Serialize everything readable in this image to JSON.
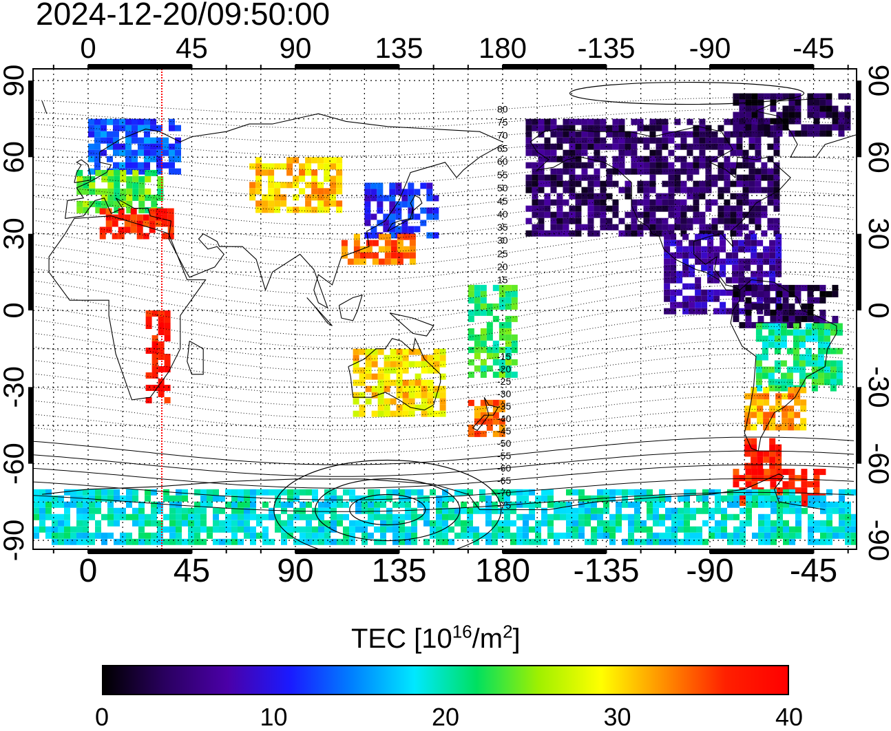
{
  "title": "2024-12-20/09:50:00",
  "map": {
    "x_ticks": [
      "0",
      "45",
      "90",
      "135",
      "180",
      "-135",
      "-90",
      "-45"
    ],
    "y_ticks": [
      "90",
      "60",
      "30",
      "0",
      "-30",
      "-60",
      "-90"
    ],
    "magnetic_latitude_labels": [
      "80",
      "75",
      "70",
      "65",
      "60",
      "55",
      "50",
      "45",
      "40",
      "35",
      "30",
      "25",
      "20",
      "15",
      "-15",
      "-20",
      "-25",
      "-30",
      "-35",
      "-40",
      "-45",
      "-50",
      "-55",
      "-60",
      "-65",
      "-70",
      "-75"
    ],
    "terminator_longitude": 32
  },
  "colorbar": {
    "label_prefix": "TEC  [10",
    "label_sup1": "16",
    "label_mid": "/m",
    "label_sup2": "2",
    "label_suffix": "]",
    "ticks": [
      "0",
      "10",
      "20",
      "30",
      "40"
    ],
    "range": [
      0,
      40
    ],
    "colors": [
      "#000000",
      "#2a0060",
      "#4b00a8",
      "#1a1aff",
      "#0080ff",
      "#00e8ff",
      "#00e060",
      "#a0f000",
      "#ffff00",
      "#ff9000",
      "#ff2000",
      "#ff0000"
    ]
  },
  "tec_regions": [
    {
      "name": "europe-north",
      "lon": [
        0,
        40
      ],
      "lat": [
        55,
        75
      ],
      "tec": 13
    },
    {
      "name": "europe-central",
      "lon": [
        -5,
        30
      ],
      "lat": [
        40,
        55
      ],
      "tec": 24
    },
    {
      "name": "mediterranean",
      "lon": [
        5,
        35
      ],
      "lat": [
        30,
        40
      ],
      "tec": 37
    },
    {
      "name": "central-asia",
      "lon": [
        70,
        110
      ],
      "lat": [
        40,
        60
      ],
      "tec": 31
    },
    {
      "name": "japan",
      "lon": [
        120,
        150
      ],
      "lat": [
        30,
        50
      ],
      "tec": 11
    },
    {
      "name": "east-asia-south",
      "lon": [
        110,
        140
      ],
      "lat": [
        20,
        30
      ],
      "tec": 34
    },
    {
      "name": "north-america",
      "lon": [
        -170,
        -60
      ],
      "lat": [
        30,
        75
      ],
      "tec": 4
    },
    {
      "name": "greenland",
      "lon": [
        -80,
        -30
      ],
      "lat": [
        70,
        85
      ],
      "tec": 3
    },
    {
      "name": "central-america",
      "lon": [
        -110,
        -60
      ],
      "lat": [
        0,
        30
      ],
      "tec": 7
    },
    {
      "name": "south-america-north",
      "lon": [
        -80,
        -35
      ],
      "lat": [
        -5,
        10
      ],
      "tec": 3
    },
    {
      "name": "brazil",
      "lon": [
        -70,
        -35
      ],
      "lat": [
        -30,
        -5
      ],
      "tec": 21
    },
    {
      "name": "argentina",
      "lon": [
        -75,
        -50
      ],
      "lat": [
        -45,
        -30
      ],
      "tec": 32
    },
    {
      "name": "patagonia",
      "lon": [
        -75,
        -60
      ],
      "lat": [
        -60,
        -50
      ],
      "tec": 38
    },
    {
      "name": "drake-passage",
      "lon": [
        -80,
        -40
      ],
      "lat": [
        -75,
        -62
      ],
      "tec": 37
    },
    {
      "name": "australia",
      "lon": [
        115,
        155
      ],
      "lat": [
        -40,
        -15
      ],
      "tec": 30
    },
    {
      "name": "new-zealand",
      "lon": [
        165,
        180
      ],
      "lat": [
        -48,
        -35
      ],
      "tec": 34
    },
    {
      "name": "antarctica",
      "lon": [
        -180,
        180
      ],
      "lat": [
        -90,
        -70
      ],
      "tec": 19
    },
    {
      "name": "africa",
      "lon": [
        25,
        35
      ],
      "lat": [
        -35,
        0
      ],
      "tec": 38
    },
    {
      "name": "pacific-islands",
      "lon": [
        165,
        185
      ],
      "lat": [
        -25,
        10
      ],
      "tec": 22
    }
  ]
}
